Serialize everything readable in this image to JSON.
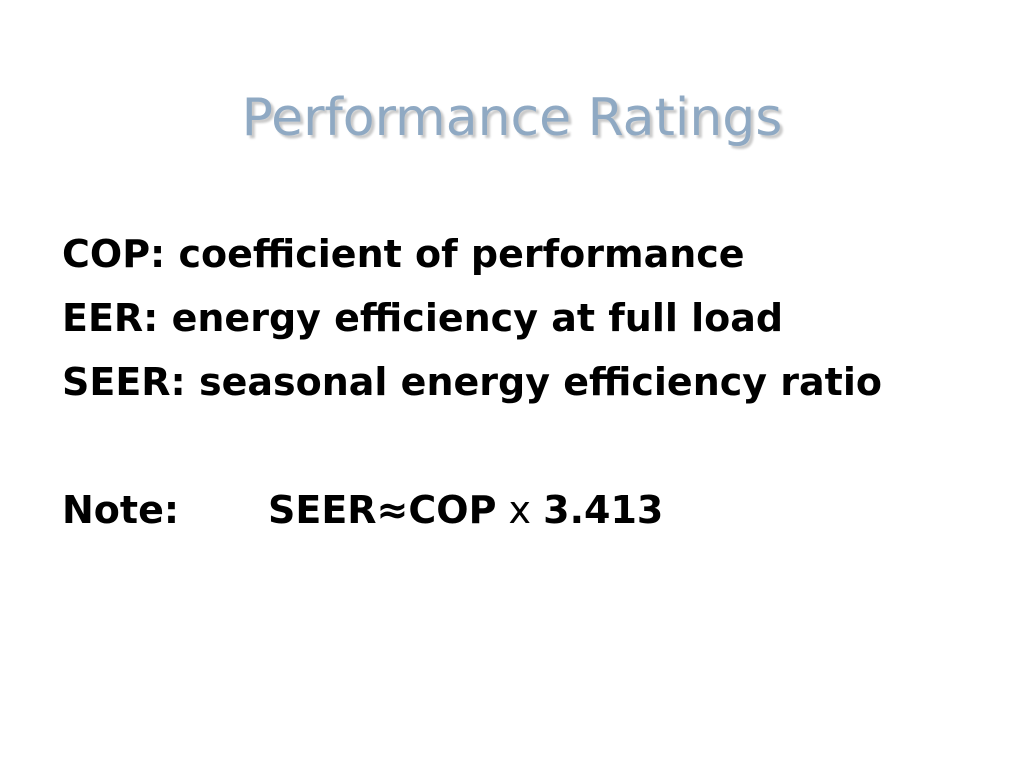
{
  "header": {
    "title": "Performance Ratings"
  },
  "body": {
    "lines": [
      "COP: coefficient of performance",
      "EER: energy efficiency at full load",
      "SEER: seasonal energy efficiency ratio"
    ],
    "note": {
      "label": "Note:",
      "left": "SEER≈COP",
      "operator": "x",
      "right": "3.413"
    }
  }
}
